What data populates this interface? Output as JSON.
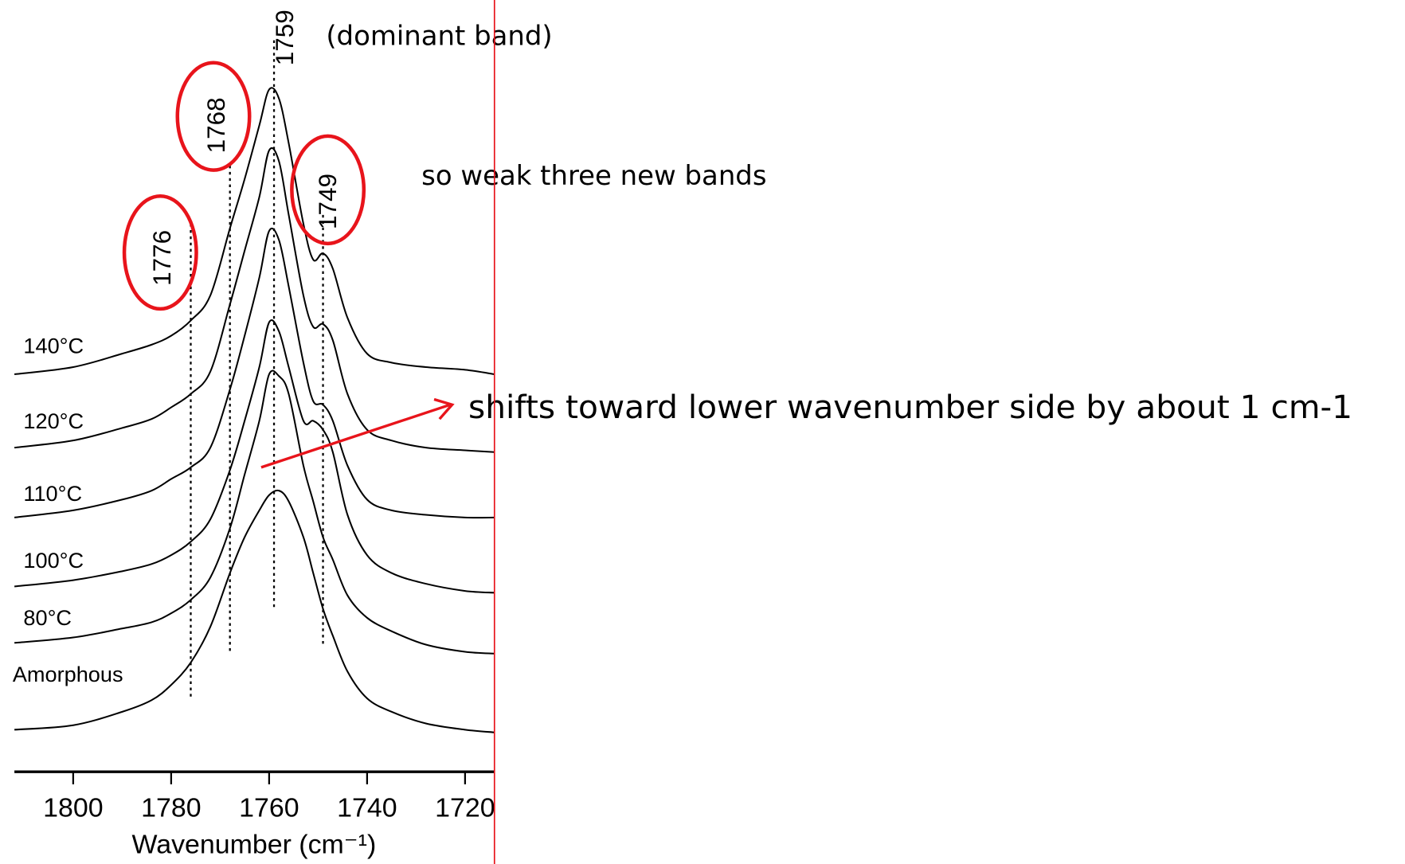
{
  "chart_data": {
    "type": "line",
    "x_label": "Wavenumber (cm⁻¹)",
    "x": [
      1812,
      1800,
      1790,
      1784,
      1780,
      1776,
      1772,
      1768,
      1765,
      1762,
      1760,
      1758,
      1756,
      1753,
      1751,
      1749,
      1747,
      1744,
      1740,
      1735,
      1728,
      1720,
      1714
    ],
    "xlim": [
      1812,
      1714
    ],
    "xticks": [
      1800,
      1780,
      1760,
      1740,
      1720
    ],
    "ylim": [
      0,
      842
    ],
    "series": [
      {
        "name": "140°C",
        "color": "#000000",
        "values": [
          444,
          452,
          467,
          477,
          487,
          504,
          532,
          607,
          662,
          722,
          762,
          752,
          702,
          612,
          572,
          579,
          562,
          507,
          467,
          457,
          452,
          449,
          444
        ]
      },
      {
        "name": "120°C",
        "color": "#000000",
        "values": [
          362,
          370,
          384,
          394,
          407,
          422,
          447,
          522,
          582,
          642,
          694,
          682,
          622,
          532,
          497,
          500,
          482,
          422,
          382,
          370,
          362,
          359,
          357
        ]
      },
      {
        "name": "110°C",
        "color": "#000000",
        "values": [
          284,
          292,
          304,
          314,
          327,
          340,
          362,
          427,
          487,
          552,
          604,
          594,
          542,
          457,
          414,
          410,
          392,
          342,
          304,
          292,
          287,
          284,
          284
        ]
      },
      {
        "name": "100°C",
        "color": "#000000",
        "values": [
          207,
          214,
          224,
          232,
          242,
          257,
          282,
          337,
          392,
          452,
          502,
          492,
          452,
          392,
          392,
          382,
          357,
          287,
          242,
          222,
          210,
          202,
          200
        ]
      },
      {
        "name": "80°C",
        "color": "#000000",
        "values": [
          144,
          150,
          160,
          167,
          177,
          192,
          217,
          272,
          332,
          392,
          444,
          442,
          422,
          342,
          302,
          262,
          237,
          197,
          172,
          157,
          142,
          134,
          132
        ]
      },
      {
        "name": "Amorphous",
        "color": "#000000",
        "values": [
          47,
          52,
          67,
          80,
          97,
          122,
          162,
          222,
          262,
          292,
          309,
          314,
          302,
          262,
          222,
          182,
          152,
          112,
          82,
          67,
          54,
          47,
          44
        ]
      }
    ],
    "band_lines": [
      1776,
      1768,
      1759,
      1749
    ],
    "circled_bands": [
      1776,
      1768,
      1749
    ],
    "annotations": [
      "(dominant band)",
      "so weak three new bands",
      "shifts toward lower wavenumber side by about 1 cm-1"
    ],
    "highlight_color": "#e8141b"
  }
}
